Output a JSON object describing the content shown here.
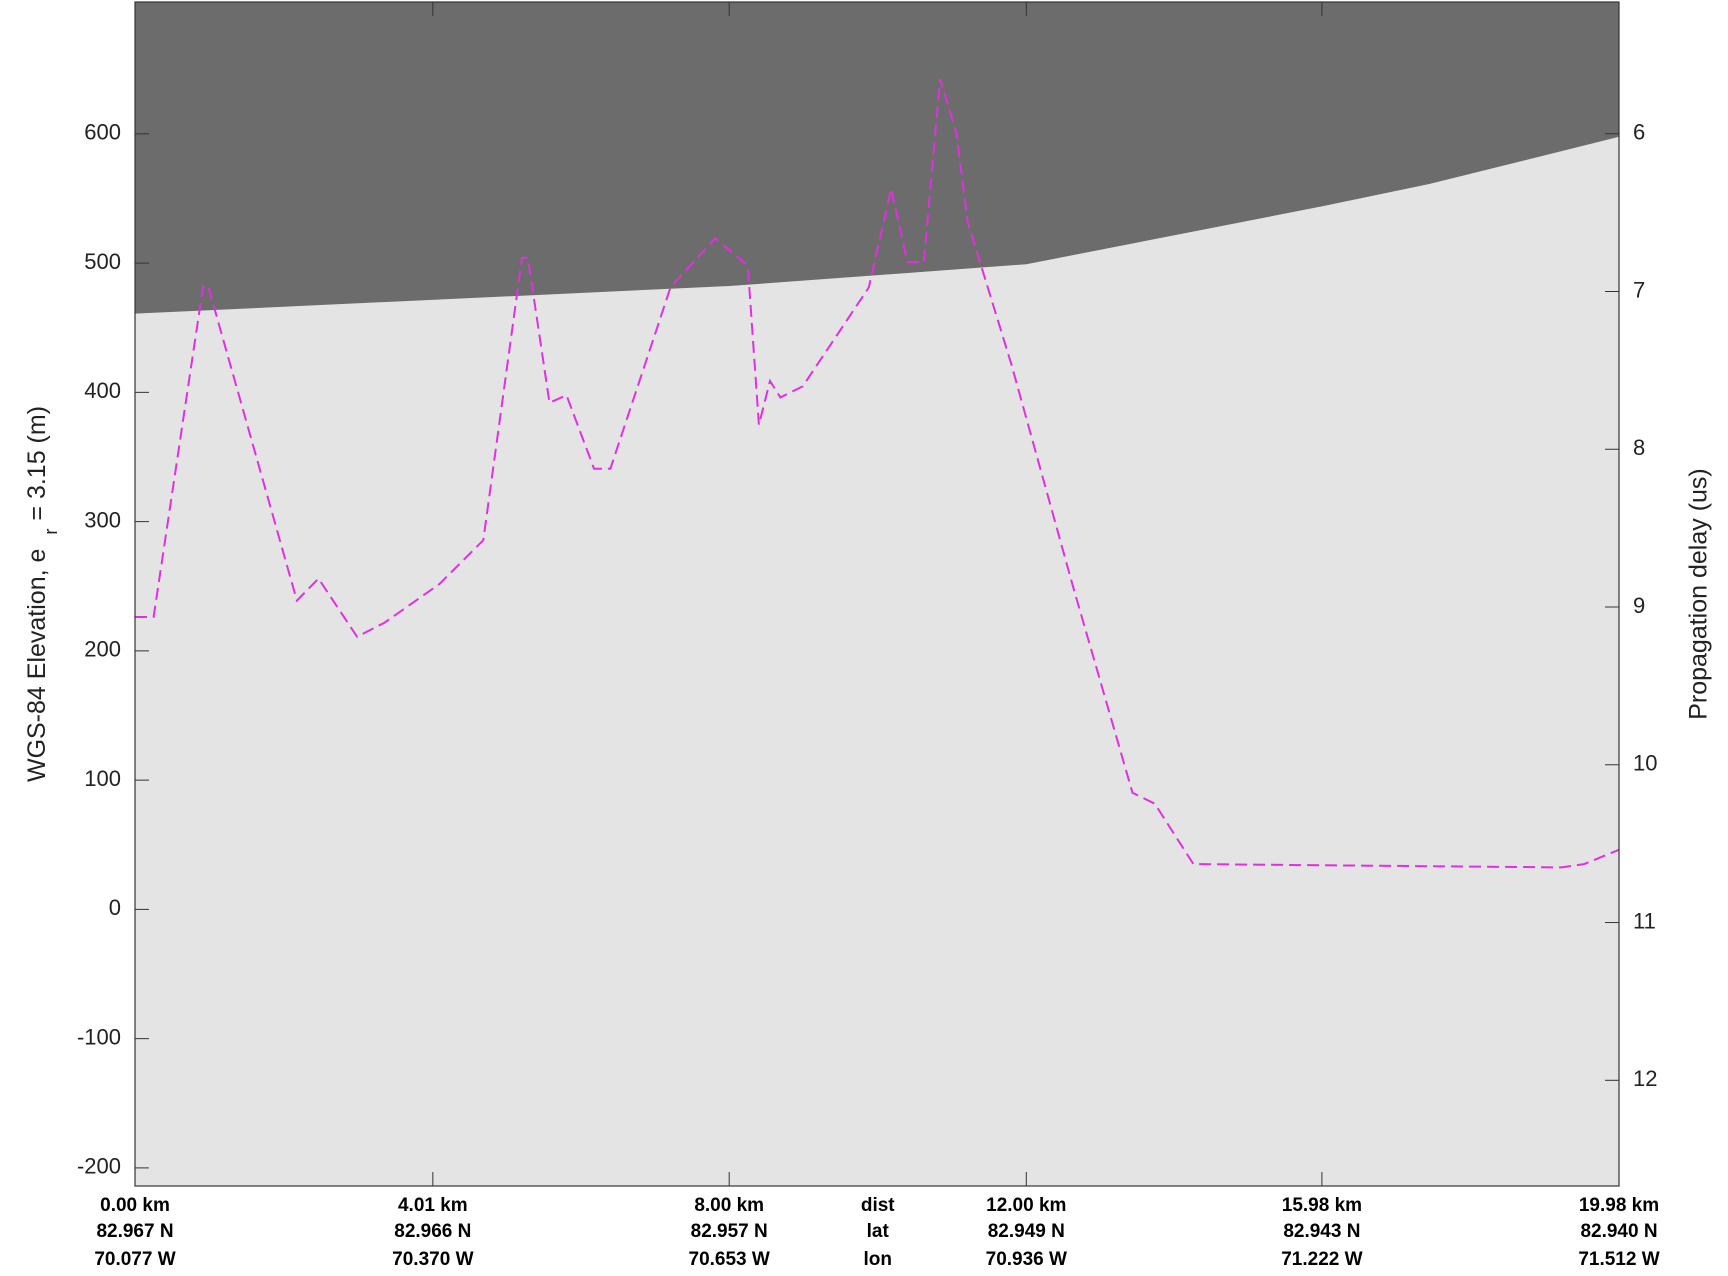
{
  "chart_data": {
    "type": "line",
    "y_label": {
      "text": "WGS-84 Elevation, e",
      "subscript": "r",
      "suffix": "= 3.15 (m)"
    },
    "y2_label": "Propagation delay (us)",
    "xlim": [
      0,
      19.98
    ],
    "xticks": [
      {
        "value": 0,
        "label": "0.00 km"
      },
      {
        "value": 4.01,
        "label": "4.01 km"
      },
      {
        "value": 8.0,
        "label": "8.00 km"
      },
      {
        "value": 12.0,
        "label": "12.00 km"
      },
      {
        "value": 15.98,
        "label": "15.98 km"
      },
      {
        "value": 19.98,
        "label": "19.98 km"
      }
    ],
    "lat_labels": [
      "82.967 N",
      "82.966 N",
      "82.957 N",
      "82.949 N",
      "82.943 N",
      "82.940 N"
    ],
    "lon_labels": [
      "70.077 W",
      "70.370 W",
      "70.653 W",
      "70.936 W",
      "71.222 W",
      "71.512 W"
    ],
    "row_names": [
      "dist",
      "lat",
      "lon"
    ],
    "ylim": [
      -214,
      702
    ],
    "yticks": [
      -200,
      -100,
      0,
      100,
      200,
      300,
      400,
      500,
      600
    ],
    "y2lim": [
      12.67,
      5.165
    ],
    "y2ticks": [
      6,
      7,
      8,
      9,
      10,
      11,
      12
    ],
    "background": "#e4e4e4",
    "series": [
      {
        "color": "#6c6c6c",
        "fill": "above",
        "x": [
          0,
          8.0,
          12.0,
          16.01,
          17.43,
          19.98
        ],
        "values": [
          461.5,
          482.8,
          499.7,
          544.8,
          561.8,
          598.3
        ]
      },
      {
        "color": "#e030e0",
        "dash": true,
        "x": [
          0,
          0.25,
          0.92,
          0.99,
          2.18,
          2.47,
          2.99,
          3.36,
          4.1,
          4.69,
          5.21,
          5.29,
          5.58,
          5.81,
          6.18,
          6.4,
          7.21,
          7.81,
          8.25,
          8.4,
          8.55,
          8.69,
          8.99,
          9.88,
          10.18,
          10.4,
          10.62,
          10.84,
          11.06,
          11.21,
          11.8,
          12.62,
          13.43,
          13.73,
          14.25,
          19.21,
          19.51,
          19.98
        ],
        "values": [
          226.2,
          226.2,
          482.8,
          481.1,
          238.9,
          255.9,
          210.9,
          221.9,
          251.7,
          285.6,
          504.0,
          504.0,
          391.9,
          397.8,
          340.9,
          340.9,
          481.1,
          519.3,
          498.0,
          374.9,
          408.8,
          396.1,
          404.6,
          481.1,
          557.5,
          500.6,
          500.6,
          642.5,
          600.0,
          532.0,
          421.6,
          251.7,
          90.2,
          81.8,
          35.0,
          32.5,
          35.0,
          46.1
        ]
      }
    ]
  }
}
